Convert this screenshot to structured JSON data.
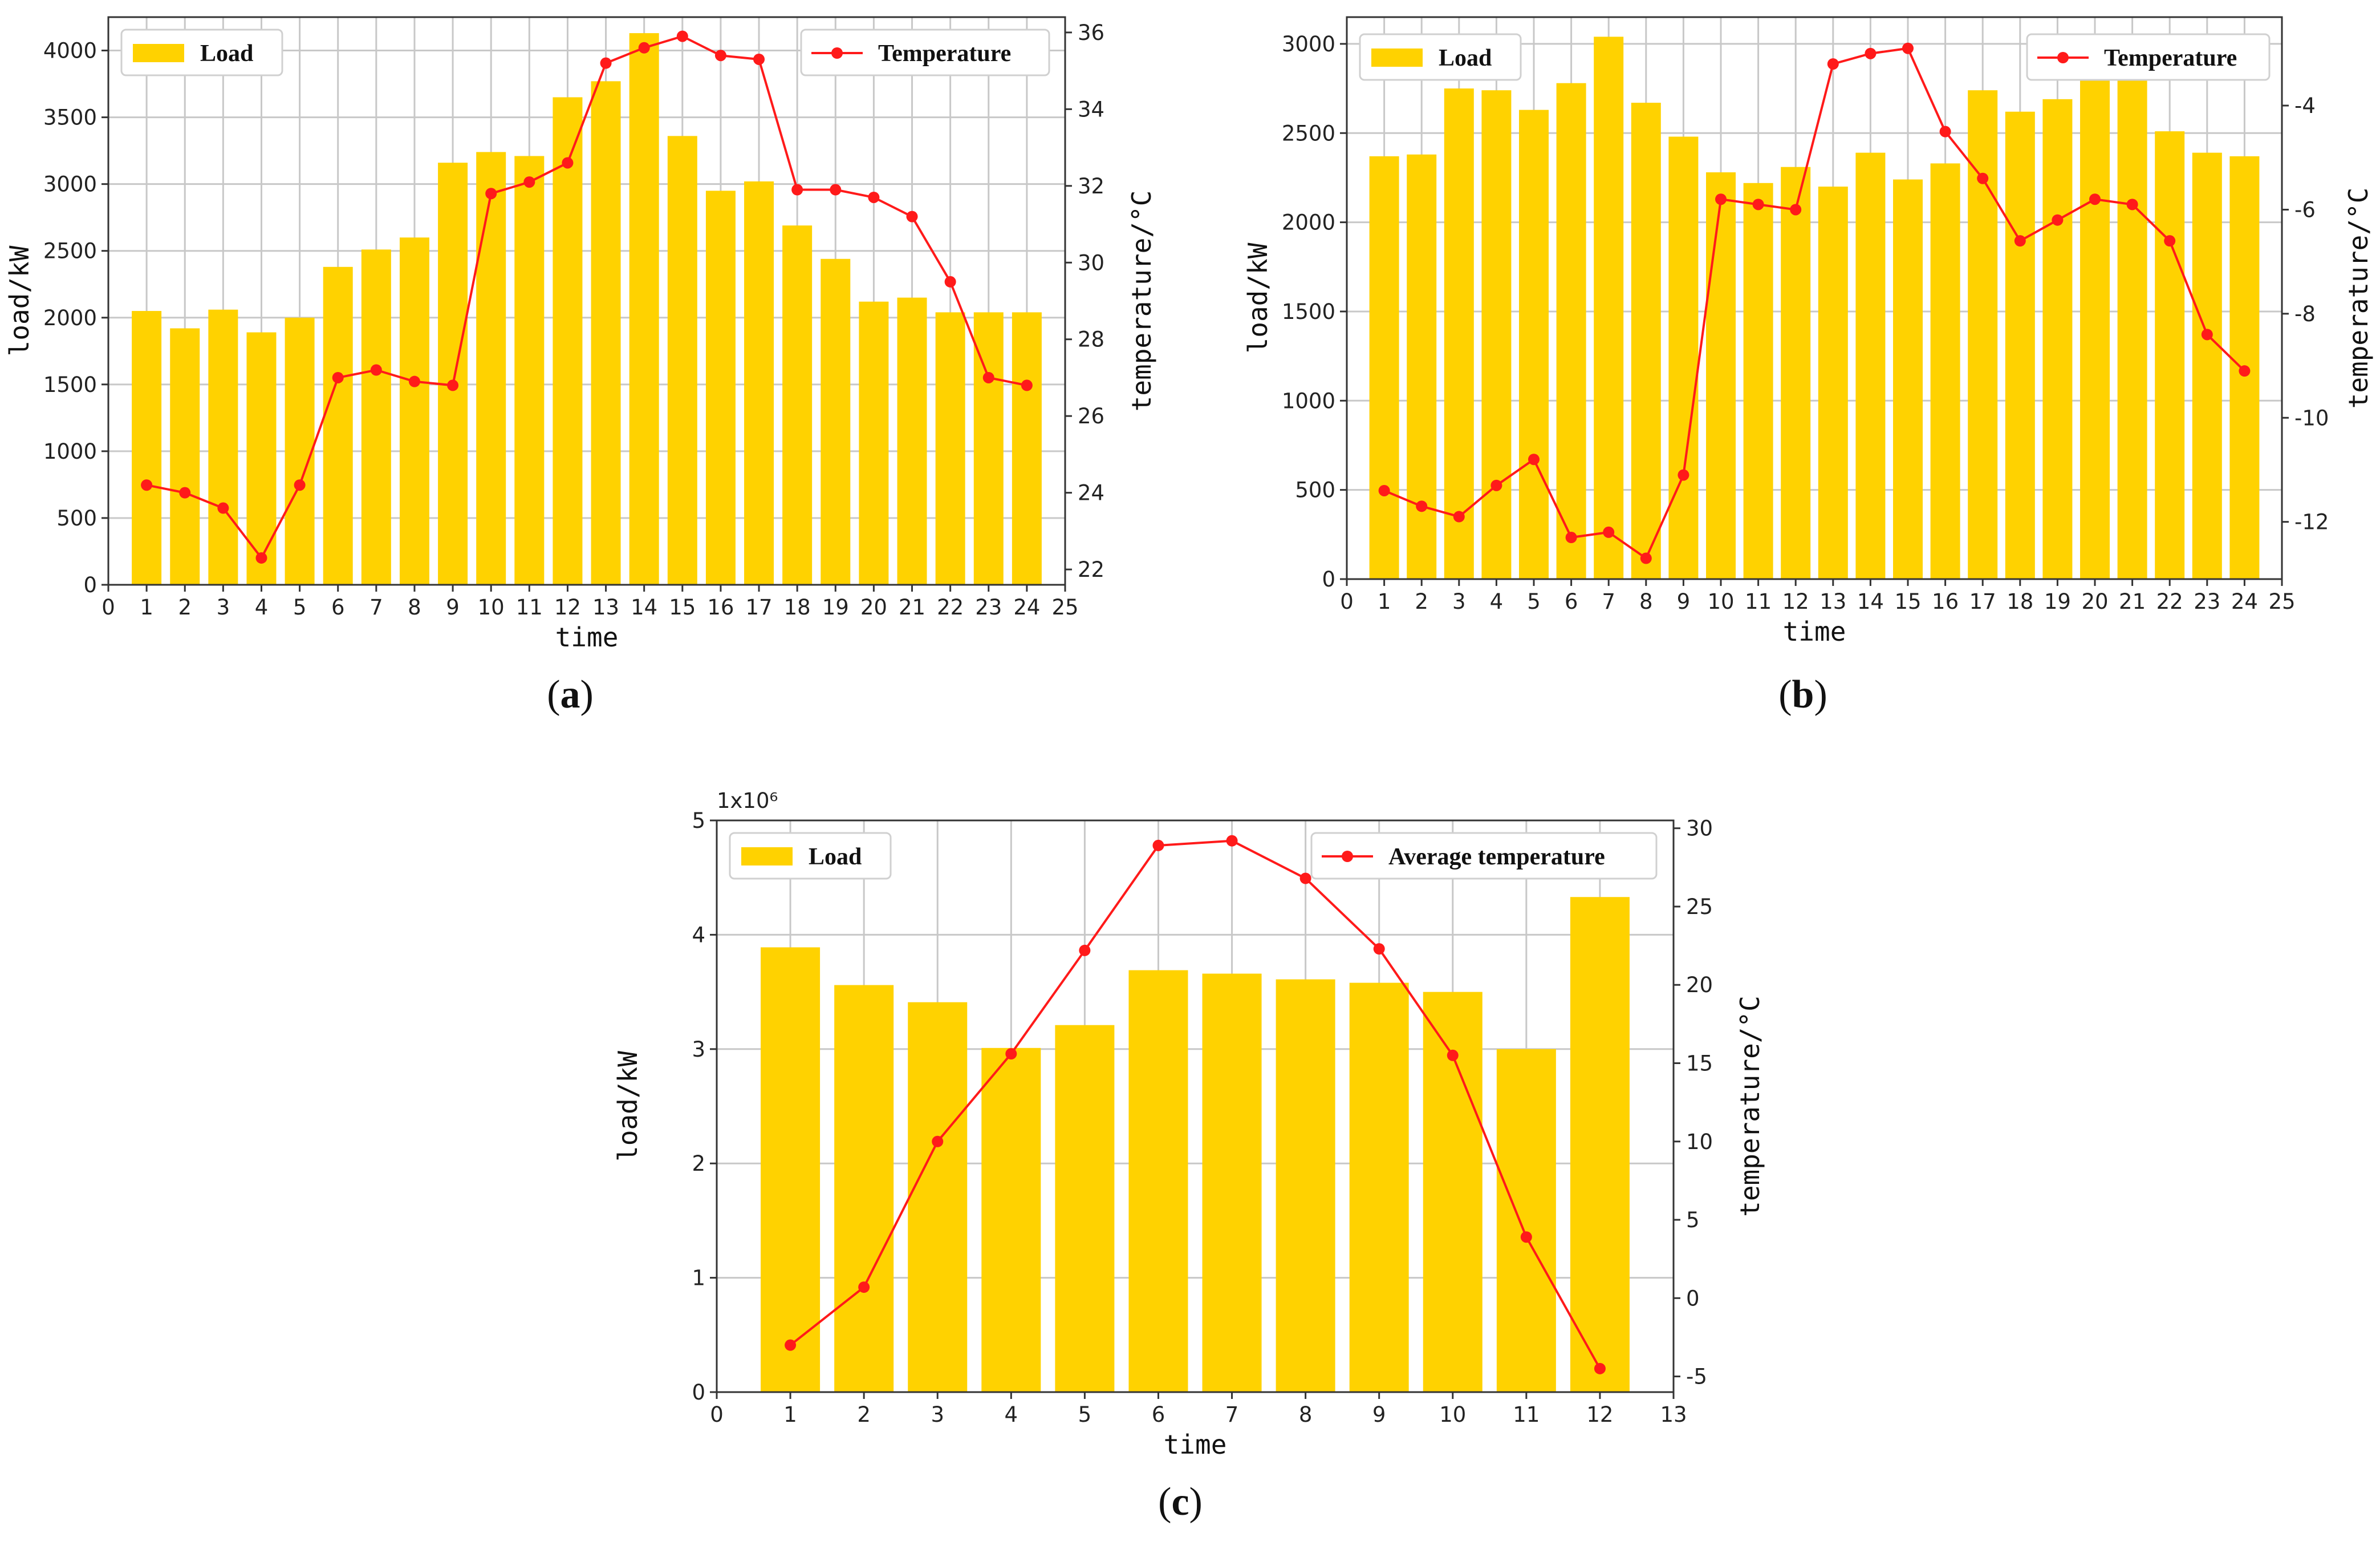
{
  "chart_data": [
    {
      "type": "bar+line",
      "caption_letter": "a",
      "xlabel": "time",
      "ylabel": "load/kW",
      "y2label": "temperature/°C",
      "x": [
        1,
        2,
        3,
        4,
        5,
        6,
        7,
        8,
        9,
        10,
        11,
        12,
        13,
        14,
        15,
        16,
        17,
        18,
        19,
        20,
        21,
        22,
        23,
        24
      ],
      "xlim": [
        0,
        25
      ],
      "xticks": [
        0,
        1,
        2,
        3,
        4,
        5,
        6,
        7,
        8,
        9,
        10,
        11,
        12,
        13,
        14,
        15,
        16,
        17,
        18,
        19,
        20,
        21,
        22,
        23,
        24,
        25
      ],
      "ylim": [
        0,
        4250
      ],
      "yticks": [
        0,
        500,
        1000,
        1500,
        2000,
        2500,
        3000,
        3500,
        4000
      ],
      "y2lim": [
        21.6,
        36.4
      ],
      "y2ticks": [
        22,
        24,
        26,
        28,
        30,
        32,
        34,
        36
      ],
      "legend_placement": "top",
      "series": [
        {
          "name": "Load",
          "kind": "bar",
          "axis": "left",
          "color": "#FFD200",
          "values": [
            2050,
            1920,
            2060,
            1890,
            2000,
            2380,
            2510,
            2600,
            3160,
            3240,
            3210,
            3650,
            3770,
            4130,
            3360,
            2950,
            3020,
            2690,
            2440,
            2120,
            2150,
            2040,
            2040,
            2040
          ]
        },
        {
          "name": "Temperature",
          "kind": "line",
          "axis": "right",
          "color": "#FF1A1A",
          "values": [
            24.2,
            24.0,
            23.6,
            22.3,
            24.2,
            27.0,
            27.2,
            26.9,
            26.8,
            31.8,
            32.1,
            32.6,
            35.2,
            35.6,
            35.9,
            35.4,
            35.3,
            31.9,
            31.9,
            31.7,
            31.2,
            29.5,
            27.0,
            26.8
          ]
        }
      ]
    },
    {
      "type": "bar+line",
      "caption_letter": "b",
      "xlabel": "time",
      "ylabel": "load/kW",
      "y2label": "temperature/°C",
      "x": [
        1,
        2,
        3,
        4,
        5,
        6,
        7,
        8,
        9,
        10,
        11,
        12,
        13,
        14,
        15,
        16,
        17,
        18,
        19,
        20,
        21,
        22,
        23,
        24
      ],
      "xlim": [
        0,
        25
      ],
      "xticks": [
        0,
        1,
        2,
        3,
        4,
        5,
        6,
        7,
        8,
        9,
        10,
        11,
        12,
        13,
        14,
        15,
        16,
        17,
        18,
        19,
        20,
        21,
        22,
        23,
        24,
        25
      ],
      "ylim": [
        0,
        3150
      ],
      "yticks": [
        0,
        500,
        1000,
        1500,
        2000,
        2500,
        3000
      ],
      "y2lim": [
        -13.1,
        -2.3
      ],
      "y2ticks": [
        -12,
        -10,
        -8,
        -6,
        -4
      ],
      "legend_placement": "top",
      "series": [
        {
          "name": "Load",
          "kind": "bar",
          "axis": "left",
          "color": "#FFD200",
          "values": [
            2370,
            2380,
            2750,
            2740,
            2630,
            2780,
            3040,
            2670,
            2480,
            2280,
            2220,
            2310,
            2200,
            2390,
            2240,
            2330,
            2740,
            2620,
            2690,
            2810,
            2940,
            2510,
            2390,
            2370
          ]
        },
        {
          "name": "Temperature",
          "kind": "line",
          "axis": "right",
          "color": "#FF1A1A",
          "values": [
            -11.4,
            -11.7,
            -11.9,
            -11.3,
            -10.8,
            -12.3,
            -12.2,
            -12.7,
            -11.1,
            -5.8,
            -5.9,
            -6.0,
            -3.2,
            -3.0,
            -2.9,
            -4.5,
            -5.4,
            -6.6,
            -6.2,
            -5.8,
            -5.9,
            -6.6,
            -8.4,
            -9.1
          ]
        }
      ]
    },
    {
      "type": "bar+line",
      "caption_letter": "c",
      "xlabel": "time",
      "ylabel": "load/kW",
      "y2label": "temperature/°C",
      "yscale_label": "1x10⁶",
      "x": [
        1,
        2,
        3,
        4,
        5,
        6,
        7,
        8,
        9,
        10,
        11,
        12
      ],
      "xlim": [
        0,
        13
      ],
      "xticks": [
        0,
        1,
        2,
        3,
        4,
        5,
        6,
        7,
        8,
        9,
        10,
        11,
        12,
        13
      ],
      "ylim": [
        0,
        5
      ],
      "yticks": [
        0,
        1,
        2,
        3,
        4,
        5
      ],
      "y2lim": [
        -6,
        30.5
      ],
      "y2ticks": [
        -5,
        0,
        5,
        10,
        15,
        20,
        25,
        30
      ],
      "legend_placement": "top",
      "series": [
        {
          "name": "Load",
          "kind": "bar",
          "axis": "left",
          "color": "#FFD200",
          "values": [
            3.89,
            3.56,
            3.41,
            3.01,
            3.21,
            3.69,
            3.66,
            3.61,
            3.58,
            3.5,
            3.0,
            4.33
          ]
        },
        {
          "name": "Average temperature",
          "kind": "line",
          "axis": "right",
          "color": "#FF1A1A",
          "values": [
            -3.0,
            0.7,
            10.0,
            15.6,
            22.2,
            28.9,
            29.2,
            26.8,
            22.3,
            15.5,
            3.9,
            -4.5
          ]
        }
      ]
    }
  ]
}
